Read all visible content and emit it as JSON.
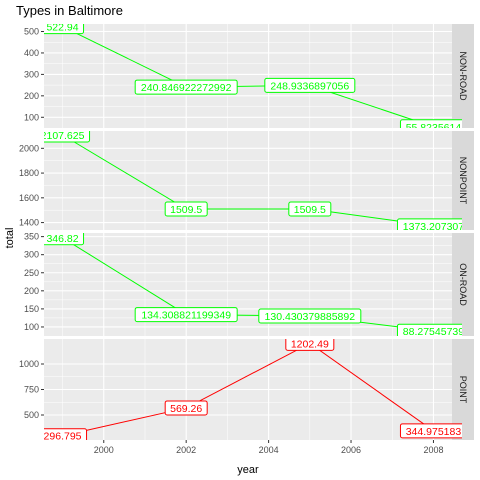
{
  "chart_data": {
    "type": "line",
    "title": "Types in Baltimore",
    "xlabel": "year",
    "ylabel": "total",
    "x": [
      1999,
      2002,
      2005,
      2008
    ],
    "xlim": [
      1998.55,
      2008.45
    ],
    "x_ticks": [
      2000,
      2002,
      2004,
      2006,
      2008
    ],
    "x_tick_labels": [
      "2000",
      "2002",
      "2004",
      "2006",
      "2008"
    ],
    "grid": true,
    "panel_background": "#ebebeb",
    "strip_background": "#d9d9d9",
    "grid_color": "#ffffff",
    "facets": [
      {
        "name": "NON-ROAD",
        "color": "#00ff00",
        "values": [
          522.94,
          240.846922272992,
          248.9336897056,
          55.8235614
        ],
        "labels": [
          "522.94",
          "240.846922272992",
          "248.9336897056",
          "55.8235614"
        ],
        "ylim": [
          50,
          535
        ],
        "y_ticks": [
          100,
          200,
          300,
          400,
          500
        ],
        "y_tick_labels": [
          "100",
          "200",
          "300",
          "400",
          "500"
        ]
      },
      {
        "name": "NONPOINT",
        "color": "#00ff00",
        "values": [
          2107.625,
          1509.5,
          1509.5,
          1373.207307
        ],
        "labels": [
          "2107.625",
          "1509.5",
          "1509.5",
          "1373.207307"
        ],
        "ylim": [
          1340,
          2140
        ],
        "y_ticks": [
          1400,
          1600,
          1800,
          2000
        ],
        "y_tick_labels": [
          "1400",
          "1600",
          "1800",
          "2000"
        ]
      },
      {
        "name": "ON-ROAD",
        "color": "#00ff00",
        "values": [
          346.82,
          134.308821199349,
          130.430379885892,
          88.27545739
        ],
        "labels": [
          "346.82",
          "134.308821199349",
          "130.430379885892",
          "88.27545739"
        ],
        "ylim": [
          75,
          360
        ],
        "y_ticks": [
          100,
          150,
          200,
          250,
          300,
          350
        ],
        "y_tick_labels": [
          "100",
          "150",
          "200",
          "250",
          "300",
          "350"
        ]
      },
      {
        "name": "POINT",
        "color": "#ff0000",
        "values": [
          296.795,
          569.26,
          1202.49,
          344.975183
        ],
        "labels": [
          "296.795",
          "569.26",
          "1202.49",
          "344.975183"
        ],
        "ylim": [
          255,
          1245
        ],
        "y_ticks": [
          500,
          750,
          1000
        ],
        "y_tick_labels": [
          "500",
          "750",
          "1000"
        ]
      }
    ]
  }
}
